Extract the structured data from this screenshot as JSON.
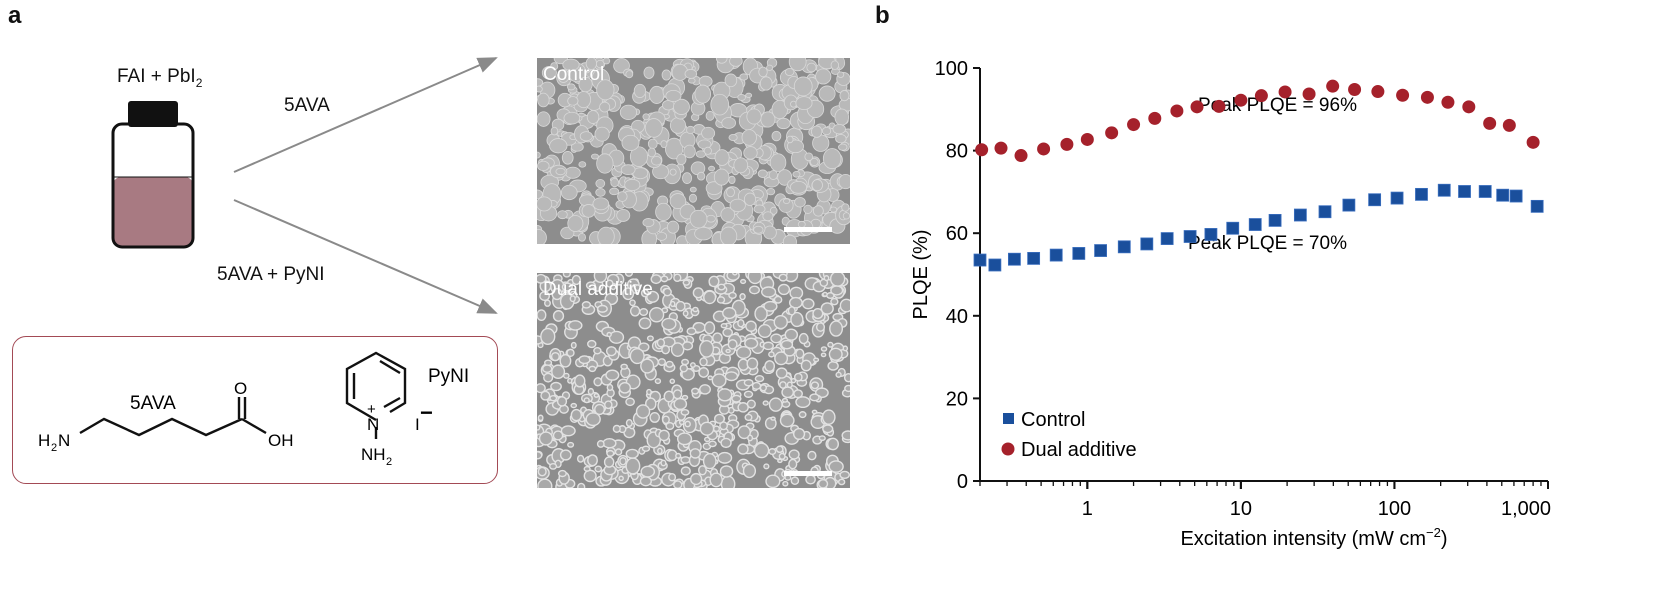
{
  "panel_a": {
    "label": "a",
    "precursor": "FAI + PbI",
    "precursor_sub": "2",
    "arrow_top_label": "5AVA",
    "arrow_bottom_label": "5AVA + PyNI",
    "sem_top_title": "Control",
    "sem_bottom_title": "Dual additive",
    "box_border_color": "#a34a55",
    "liquid_color": "#a87a82",
    "structures": {
      "ava_name": "5AVA",
      "ava_O": "O",
      "ava_OH": "OH",
      "ava_H2N": "H",
      "ava_H2N_sub": "2",
      "ava_N": "N",
      "pyni_name": "PyNI",
      "pyni_N": "N",
      "pyni_plus": "+",
      "pyni_NH": "NH",
      "pyni_NH_sub": "2",
      "pyni_I": "I",
      "pyni_minus": "−"
    }
  },
  "chart_data": {
    "panel_label": "b",
    "type": "scatter",
    "xlabel": "Excitation intensity (mW cm",
    "xlabel_sup": "−2",
    "xlabel_end": ")",
    "ylabel": "PLQE (%)",
    "xscale": "log",
    "xlim": [
      0.2,
      1000
    ],
    "ylim": [
      0,
      100
    ],
    "xticks": [
      1,
      10,
      100,
      1000
    ],
    "xtick_labels": [
      "1",
      "10",
      "100",
      "1,000"
    ],
    "yticks": [
      0,
      20,
      40,
      60,
      80,
      100
    ],
    "ytick_labels": [
      "0",
      "20",
      "40",
      "60",
      "80",
      "100"
    ],
    "grid": false,
    "legend_position": "bottom-left",
    "annotations": [
      "Peak PLQE = 96%",
      "Peak PLQE = 70%"
    ],
    "series": [
      {
        "name": "Control",
        "marker": "square",
        "color": "#1a4f9c",
        "x": [
          0.2,
          0.25,
          0.335,
          0.447,
          0.627,
          0.88,
          1.22,
          1.74,
          2.44,
          3.31,
          4.67,
          6.38,
          8.85,
          12.4,
          16.7,
          24.4,
          35.3,
          50.5,
          74.3,
          104,
          150,
          211,
          286,
          390,
          507,
          620,
          850
        ],
        "y": [
          53.5,
          52.3,
          53.7,
          53.9,
          54.7,
          55.1,
          55.8,
          56.7,
          57.4,
          58.7,
          59.2,
          59.7,
          61.2,
          62.1,
          63.1,
          64.4,
          65.2,
          66.8,
          68.1,
          68.5,
          69.4,
          70.4,
          70.1,
          70.1,
          69.2,
          69.0,
          66.5
        ]
      },
      {
        "name": "Dual additive",
        "marker": "circle",
        "color": "#a5212b",
        "x": [
          0.205,
          0.274,
          0.37,
          0.519,
          0.736,
          1.0,
          1.44,
          2.0,
          2.75,
          3.83,
          5.18,
          7.2,
          10.0,
          13.6,
          19.4,
          27.8,
          39.6,
          55,
          78,
          113,
          164,
          223,
          305,
          417,
          560,
          800
        ],
        "y": [
          80.2,
          80.6,
          78.8,
          80.4,
          81.5,
          82.7,
          84.3,
          86.3,
          87.8,
          89.6,
          90.6,
          90.7,
          92.2,
          93.3,
          94.2,
          93.7,
          95.6,
          94.8,
          94.3,
          93.4,
          92.9,
          91.7,
          90.6,
          86.6,
          86.1,
          82.0
        ]
      }
    ]
  }
}
